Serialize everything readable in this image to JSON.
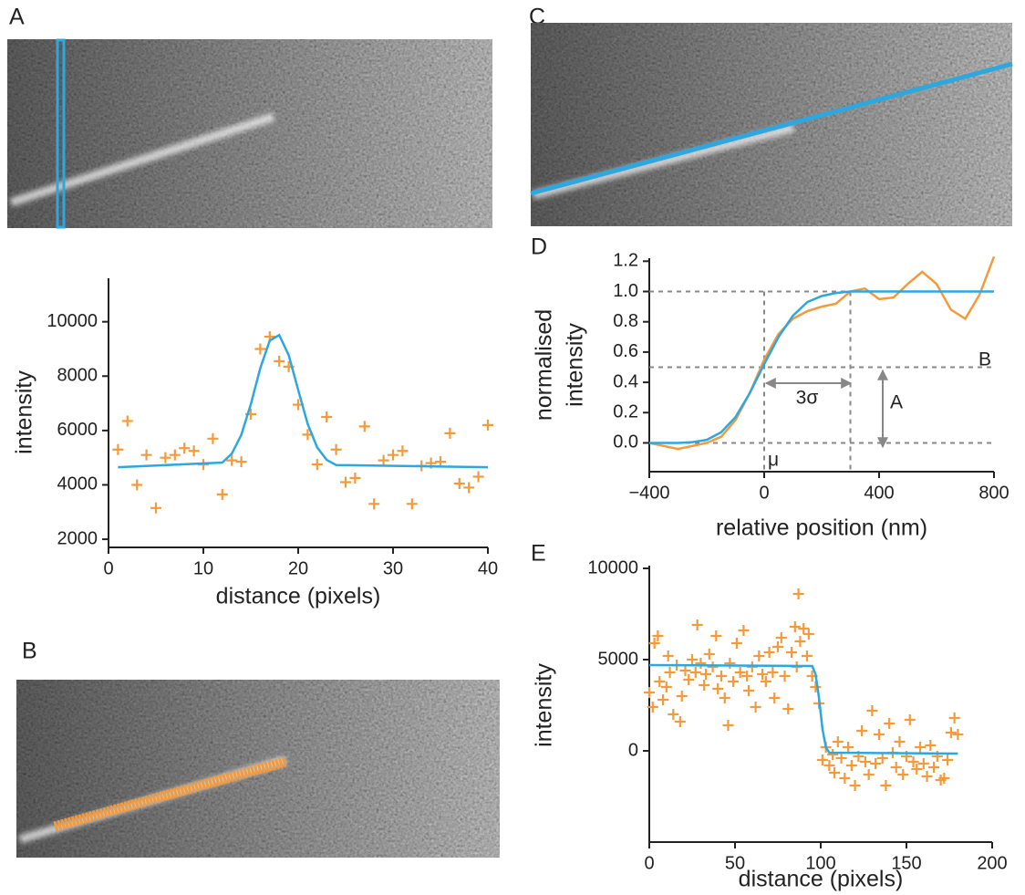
{
  "panel_labels": [
    "A",
    "B",
    "C",
    "D",
    "E"
  ],
  "chart_data": [
    {
      "type": "scatter",
      "x_label": "distance (pixels)",
      "y_label": [
        "intensity"
      ],
      "xlim": [
        0,
        40
      ],
      "ylim": [
        1700,
        11600
      ],
      "xticks": [
        0,
        10,
        20,
        30,
        40
      ],
      "yticks": [
        2000,
        4000,
        6000,
        8000,
        10000
      ],
      "series": [
        {
          "type": "scatter",
          "color": "#f39a3d",
          "x": [
            1,
            2,
            3,
            4,
            5,
            6,
            7,
            8,
            9,
            10,
            11,
            12,
            13,
            14,
            15,
            16,
            17,
            18,
            19,
            20,
            21,
            22,
            23,
            24,
            25,
            26,
            27,
            28,
            29,
            30,
            31,
            32,
            33,
            34,
            35,
            36,
            37,
            38,
            39,
            40
          ],
          "values": [
            5300,
            6350,
            4000,
            5100,
            3150,
            5000,
            5100,
            5350,
            5250,
            4750,
            5700,
            3650,
            4900,
            4850,
            6600,
            9000,
            9450,
            8550,
            8350,
            6950,
            5850,
            4750,
            6500,
            5300,
            4100,
            4250,
            6150,
            3300,
            4900,
            5100,
            5250,
            3300,
            4700,
            4800,
            4850,
            5900,
            4050,
            3900,
            4300,
            6200
          ]
        },
        {
          "type": "line",
          "color": "#2ea7df",
          "x": [
            1,
            12,
            13,
            14,
            15,
            16,
            17,
            18,
            19,
            20,
            21,
            22,
            23,
            24,
            40
          ],
          "values": [
            4650,
            4820,
            5150,
            5840,
            6960,
            8290,
            9310,
            9510,
            8770,
            7490,
            6240,
            5380,
            4920,
            4730,
            4650
          ]
        }
      ]
    },
    {
      "type": "line",
      "x_label": "relative position (nm)",
      "y_label": [
        "normalised",
        "intensity"
      ],
      "xlim": [
        -400,
        800
      ],
      "ylim": [
        -0.19,
        1.22
      ],
      "xticks": [
        {
          "value": -400,
          "label": "−400"
        },
        0,
        400,
        800
      ],
      "yticks": [
        {
          "value": 0,
          "label": "0.0"
        },
        0.2,
        0.4,
        0.6,
        0.8,
        {
          "value": 1,
          "label": "1.0"
        },
        1.2
      ],
      "hlines": [
        0,
        0.5,
        1
      ],
      "vlines": [
        0,
        300
      ],
      "annotations": [
        "B",
        "A",
        "3σ",
        "μ"
      ],
      "series": [
        {
          "type": "line",
          "color": "#f39a3d",
          "x": [
            -400,
            -350,
            -300,
            -250,
            -200,
            -150,
            -100,
            -50,
            0,
            50,
            100,
            150,
            200,
            250,
            300,
            350,
            400,
            450,
            500,
            550,
            600,
            650,
            700,
            750,
            800
          ],
          "values": [
            0,
            -0.02,
            -0.04,
            -0.02,
            0,
            0.04,
            0.15,
            0.33,
            0.55,
            0.72,
            0.82,
            0.87,
            0.9,
            0.92,
            1.0,
            1.02,
            0.95,
            0.96,
            1.05,
            1.13,
            1.05,
            0.88,
            0.82,
            0.98,
            1.23
          ]
        },
        {
          "type": "line",
          "color": "#2ea7df",
          "x": [
            -400,
            -300,
            -250,
            -200,
            -150,
            -100,
            -50,
            0,
            50,
            100,
            150,
            200,
            250,
            300,
            350,
            400,
            800
          ],
          "values": [
            0,
            0,
            0.005,
            0.02,
            0.07,
            0.17,
            0.33,
            0.52,
            0.7,
            0.84,
            0.93,
            0.97,
            0.99,
            1.0,
            1.0,
            1.0,
            1.0
          ]
        }
      ]
    },
    {
      "type": "scatter",
      "x_label": "distance (pixels)",
      "y_label": [
        "intensity"
      ],
      "xlim": [
        0,
        200
      ],
      "ylim": [
        -5000,
        10150
      ],
      "xticks": [
        0,
        50,
        100,
        150,
        200
      ],
      "yticks": [
        0,
        5000,
        10000
      ],
      "series": [
        {
          "type": "scatter",
          "color": "#f39a3d",
          "x": [
            0,
            2,
            3,
            5,
            6,
            8,
            10,
            11,
            12,
            14,
            16,
            18,
            19,
            21,
            23,
            25,
            27,
            28,
            30,
            32,
            33,
            35,
            37,
            39,
            40,
            42,
            44,
            46,
            47,
            49,
            51,
            53,
            55,
            57,
            58,
            60,
            62,
            64,
            66,
            68,
            70,
            72,
            73,
            75,
            77,
            79,
            81,
            83,
            85,
            86,
            87,
            88,
            90,
            92,
            93,
            95,
            97,
            99,
            101,
            103,
            105,
            107,
            108,
            110,
            112,
            114,
            116,
            118,
            120,
            122,
            124,
            126,
            128,
            130,
            132,
            134,
            136,
            138,
            140,
            142,
            144,
            146,
            148,
            150,
            152,
            154,
            156,
            158,
            160,
            162,
            164,
            166,
            168,
            170,
            172,
            174,
            176,
            178,
            180
          ],
          "values": [
            3200,
            2400,
            5900,
            6300,
            3800,
            2800,
            3500,
            5200,
            4300,
            2000,
            4700,
            1600,
            3000,
            4400,
            3900,
            5000,
            4300,
            6900,
            4800,
            3600,
            4200,
            5300,
            4600,
            6300,
            3400,
            4100,
            2900,
            1400,
            4800,
            3800,
            5900,
            4300,
            6600,
            4100,
            3300,
            4600,
            2400,
            5200,
            4200,
            3800,
            5400,
            4300,
            2900,
            5700,
            6200,
            4100,
            2300,
            5400,
            6800,
            4600,
            8600,
            6000,
            6700,
            5200,
            6400,
            4100,
            3500,
            2600,
            -500,
            200,
            -800,
            -200,
            -1200,
            500,
            -400,
            -1500,
            200,
            -800,
            -1900,
            -300,
            1100,
            -600,
            -1300,
            2200,
            -700,
            900,
            -400,
            -1900,
            1500,
            -100,
            -900,
            500,
            -1300,
            -300,
            1700,
            -600,
            -1000,
            200,
            -700,
            -1400,
            300,
            -900,
            -300,
            -1600,
            -1500,
            -500,
            1000,
            1800,
            900
          ]
        },
        {
          "type": "line",
          "color": "#2ea7df",
          "x": [
            0,
            95,
            97,
            99,
            101,
            103,
            105,
            180
          ],
          "values": [
            4700,
            4650,
            4200,
            2900,
            1200,
            200,
            -100,
            -150
          ]
        }
      ]
    }
  ]
}
